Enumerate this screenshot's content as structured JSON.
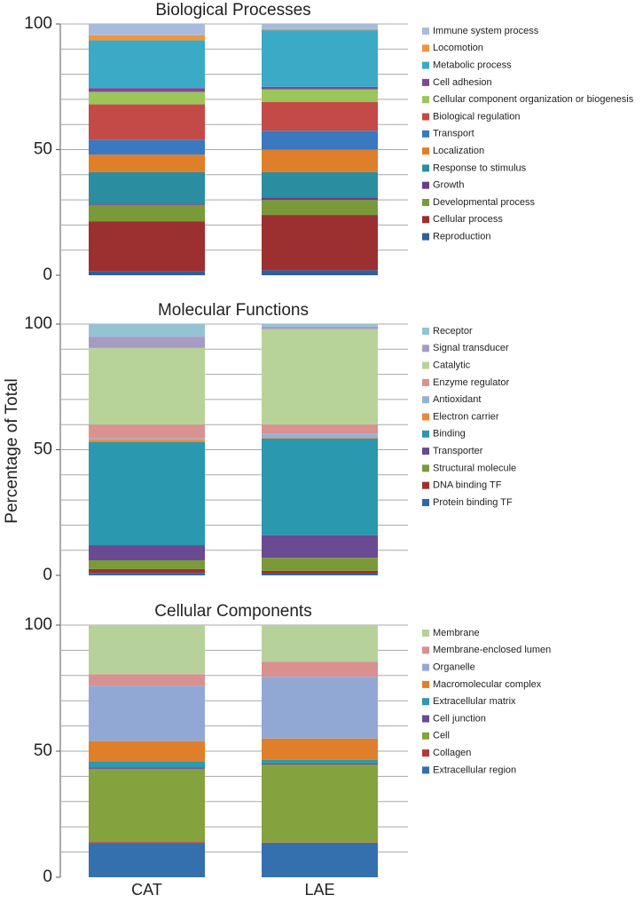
{
  "ylabel": "Percentage of Total",
  "chart_data": [
    {
      "type": "stacked_bar",
      "title": "Biological Processes",
      "ylim": [
        0,
        100
      ],
      "yticks": [
        0,
        50,
        100
      ],
      "grid_values": [
        10,
        20,
        30,
        40,
        50,
        60,
        70,
        80,
        90,
        100
      ],
      "series": [
        {
          "name": "Reproduction",
          "color": "#2e5f9c",
          "values": [
            1.5,
            2
          ]
        },
        {
          "name": "Cellular process",
          "color": "#9c3030",
          "values": [
            20,
            22
          ]
        },
        {
          "name": "Developmental process",
          "color": "#7a9a3a",
          "values": [
            6.5,
            6
          ]
        },
        {
          "name": "Growth",
          "color": "#6a3d8a",
          "values": [
            0.5,
            1
          ]
        },
        {
          "name": "Response to stimulus",
          "color": "#2a8ea0",
          "values": [
            12.5,
            10
          ]
        },
        {
          "name": "Localization",
          "color": "#e07f2a",
          "values": [
            7,
            9
          ]
        },
        {
          "name": "Transport",
          "color": "#3a78c0",
          "values": [
            6,
            7.5
          ]
        },
        {
          "name": "Biological regulation",
          "color": "#c44a48",
          "values": [
            14,
            11.5
          ]
        },
        {
          "name": "Cellular component organization or biogenesis",
          "color": "#9cc55a",
          "values": [
            5,
            5
          ]
        },
        {
          "name": "Cell adhesion",
          "color": "#7b4b96",
          "values": [
            1.5,
            1
          ]
        },
        {
          "name": "Metabolic process",
          "color": "#3aaac6",
          "values": [
            19,
            22.5
          ]
        },
        {
          "name": "Locomotion",
          "color": "#f0953a",
          "values": [
            2,
            0.5
          ]
        },
        {
          "name": "Immune system process",
          "color": "#a9bbdc",
          "values": [
            4.5,
            2
          ]
        }
      ]
    },
    {
      "type": "stacked_bar",
      "title": "Molecular Functions",
      "ylim": [
        0,
        100
      ],
      "yticks": [
        0,
        50,
        100
      ],
      "grid_values": [
        10,
        20,
        30,
        40,
        50,
        60,
        70,
        80,
        90,
        100
      ],
      "series": [
        {
          "name": "Protein binding TF",
          "color": "#2e6aa8",
          "values": [
            1,
            0.7
          ]
        },
        {
          "name": "DNA binding TF",
          "color": "#a03030",
          "values": [
            1.5,
            1.1
          ]
        },
        {
          "name": "Structural molecule",
          "color": "#7a9a3a",
          "values": [
            3.5,
            5.2
          ]
        },
        {
          "name": "Transporter",
          "color": "#6a4a92",
          "values": [
            6,
            9
          ]
        },
        {
          "name": "Binding",
          "color": "#2a98ae",
          "values": [
            41,
            38.5
          ]
        },
        {
          "name": "Electron carrier",
          "color": "#e88a35",
          "values": [
            1,
            0.5
          ]
        },
        {
          "name": "Antioxidant",
          "color": "#9bb0d8",
          "values": [
            0.5,
            1.5
          ]
        },
        {
          "name": "Enzyme regulator",
          "color": "#d99290",
          "values": [
            5.5,
            3.5
          ]
        },
        {
          "name": "Catalytic",
          "color": "#b8d39a",
          "values": [
            30.5,
            38
          ]
        },
        {
          "name": "Signal transducer",
          "color": "#a99ac4",
          "values": [
            4.5,
            1
          ]
        },
        {
          "name": "Receptor",
          "color": "#92c4d4",
          "values": [
            5,
            1
          ]
        }
      ]
    },
    {
      "type": "stacked_bar",
      "title": "Cellular Components",
      "categories": [
        "CAT",
        "LAE"
      ],
      "ylim": [
        0,
        100
      ],
      "yticks": [
        0,
        50,
        100
      ],
      "grid_values": [
        10,
        20,
        30,
        40,
        50,
        60,
        70,
        80,
        90,
        100
      ],
      "series": [
        {
          "name": "Extracellular region",
          "color": "#3470ad",
          "values": [
            13.5,
            13.5
          ]
        },
        {
          "name": "Collagen",
          "color": "#b03838",
          "values": [
            0.5,
            0.3
          ]
        },
        {
          "name": "Cell",
          "color": "#84a23e",
          "values": [
            29,
            30.9
          ]
        },
        {
          "name": "Cell junction",
          "color": "#6a4a92",
          "values": [
            0.5,
            0.5
          ]
        },
        {
          "name": "Extracellular matrix",
          "color": "#2a9aae",
          "values": [
            2.5,
            1.3
          ]
        },
        {
          "name": "Macromolecular complex",
          "color": "#e07f2a",
          "values": [
            8,
            8.5
          ]
        },
        {
          "name": "Organelle",
          "color": "#92a8d4",
          "values": [
            22,
            24.5
          ]
        },
        {
          "name": "Membrane-enclosed lumen",
          "color": "#d89090",
          "values": [
            4.5,
            6
          ]
        },
        {
          "name": "Membrane",
          "color": "#b6d29a",
          "values": [
            19.5,
            14.5
          ]
        }
      ]
    }
  ]
}
